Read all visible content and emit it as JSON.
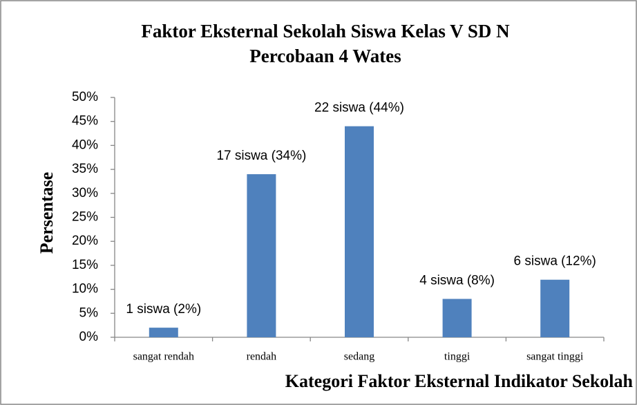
{
  "chart_data": {
    "type": "bar",
    "title": [
      "Faktor Eksternal Sekolah Siswa Kelas V SD N",
      "Percobaan 4 Wates"
    ],
    "x_label": "Kategori  Faktor Eksternal Indikator Sekolah",
    "y_label": "Persentase",
    "categories": [
      "sangat rendah",
      "rendah",
      "sedang",
      "tinggi",
      "sangat tinggi"
    ],
    "values": [
      2,
      34,
      44,
      8,
      12
    ],
    "value_labels": [
      "1 siswa (2%)",
      "17 siswa (34%)",
      "22 siswa (44%)",
      "4 siswa (8%)",
      "6 siswa (12%)"
    ],
    "color": "#4f81bd",
    "ylim": [
      0,
      50
    ],
    "yticks": [
      {
        "value": 0,
        "label": "0%"
      },
      {
        "value": 5,
        "label": "5%"
      },
      {
        "value": 10,
        "label": "10%"
      },
      {
        "value": 15,
        "label": "15%"
      },
      {
        "value": 20,
        "label": "20%"
      },
      {
        "value": 25,
        "label": "25%"
      },
      {
        "value": 30,
        "label": "30%"
      },
      {
        "value": 35,
        "label": "35%"
      },
      {
        "value": 40,
        "label": "40%"
      },
      {
        "value": 45,
        "label": "45%"
      },
      {
        "value": 50,
        "label": "50%"
      }
    ],
    "grid": false
  }
}
